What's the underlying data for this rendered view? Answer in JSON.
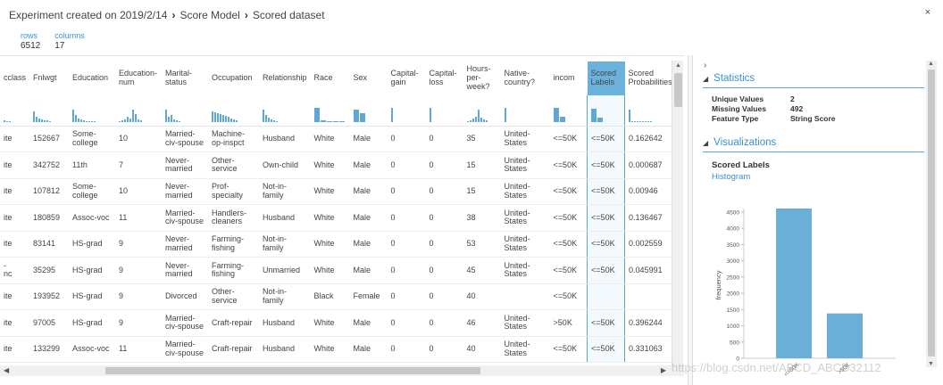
{
  "header": {
    "breadcrumb": [
      "Experiment created on 2019/2/14",
      "Score Model",
      "Scored dataset"
    ],
    "close_label": "×",
    "rows_label": "rows",
    "rows_value": "6512",
    "columns_label": "columns",
    "columns_value": "17"
  },
  "grid": {
    "columns": [
      "cclass",
      "Fnlwgt",
      "Education",
      "Education-num",
      "Marital-status",
      "Occupation",
      "Relationship",
      "Race",
      "Sex",
      "Capital-gain",
      "Capital-loss",
      "Hours-per-week?",
      "Native-country?",
      "incom",
      "Scored Labels",
      "Scored Probabilities"
    ],
    "selected_column": "Scored Labels",
    "rows": [
      [
        "ite",
        "152667",
        "Some-college",
        "10",
        "Married-civ-spouse",
        "Machine-op-inspct",
        "Husband",
        "White",
        "Male",
        "0",
        "0",
        "35",
        "United-States",
        "<=50K",
        "<=50K",
        "0.162642"
      ],
      [
        "ite",
        "342752",
        "11th",
        "7",
        "Never-married",
        "Other-service",
        "Own-child",
        "White",
        "Male",
        "0",
        "0",
        "15",
        "United-States",
        "<=50K",
        "<=50K",
        "0.000687"
      ],
      [
        "ite",
        "107812",
        "Some-college",
        "10",
        "Never-married",
        "Prof-specialty",
        "Not-in-family",
        "White",
        "Male",
        "0",
        "0",
        "15",
        "United-States",
        "<=50K",
        "<=50K",
        "0.00946"
      ],
      [
        "ite",
        "180859",
        "Assoc-voc",
        "11",
        "Married-civ-spouse",
        "Handlers-cleaners",
        "Husband",
        "White",
        "Male",
        "0",
        "0",
        "38",
        "United-States",
        "<=50K",
        "<=50K",
        "0.136467"
      ],
      [
        "ite",
        "83141",
        "HS-grad",
        "9",
        "Never-married",
        "Farming-fishing",
        "Not-in-family",
        "White",
        "Male",
        "0",
        "0",
        "53",
        "United-States",
        "<=50K",
        "<=50K",
        "0.002559"
      ],
      [
        "-\nnc",
        "35295",
        "HS-grad",
        "9",
        "Never-married",
        "Farming-fishing",
        "Unmarried",
        "White",
        "Male",
        "0",
        "0",
        "45",
        "United-States",
        "<=50K",
        "<=50K",
        "0.045991"
      ],
      [
        "ite",
        "193952",
        "HS-grad",
        "9",
        "Divorced",
        "Other-service",
        "Not-in-family",
        "Black",
        "Female",
        "0",
        "0",
        "40",
        "",
        "<=50K",
        "",
        ""
      ],
      [
        "ite",
        "97005",
        "HS-grad",
        "9",
        "Married-civ-spouse",
        "Craft-repair",
        "Husband",
        "White",
        "Male",
        "0",
        "0",
        "46",
        "United-States",
        ">50K",
        "<=50K",
        "0.396244"
      ],
      [
        "ite",
        "133299",
        "Assoc-voc",
        "11",
        "Married-civ-spouse",
        "Craft-repair",
        "Husband",
        "White",
        "Male",
        "0",
        "0",
        "40",
        "United-States",
        "<=50K",
        "<=50K",
        "0.331063"
      ]
    ]
  },
  "panel": {
    "statistics_title": "Statistics",
    "stats": [
      {
        "key": "Unique Values",
        "value": "2"
      },
      {
        "key": "Missing Values",
        "value": "492"
      },
      {
        "key": "Feature Type",
        "value": "String Score"
      }
    ],
    "visualizations_title": "Visualizations",
    "viz_column": "Scored Labels",
    "viz_type": "Histogram"
  },
  "chart_data": {
    "type": "bar",
    "categories": [
      "<=50K",
      ">50K"
    ],
    "values": [
      4640,
      1380
    ],
    "ylabel": "frequency",
    "ylim": [
      0,
      4500
    ],
    "yticks": [
      0,
      500,
      1000,
      1500,
      2000,
      2500,
      3000,
      3500,
      4000,
      4500
    ],
    "color": "#6ab0d6"
  },
  "colors": {
    "accent": "#3a8fd0",
    "selected_header": "#6ab2dc",
    "bar": "#6ab0d6"
  },
  "watermark": "https://blog.csdn.net/ABCD_ABCD32112"
}
